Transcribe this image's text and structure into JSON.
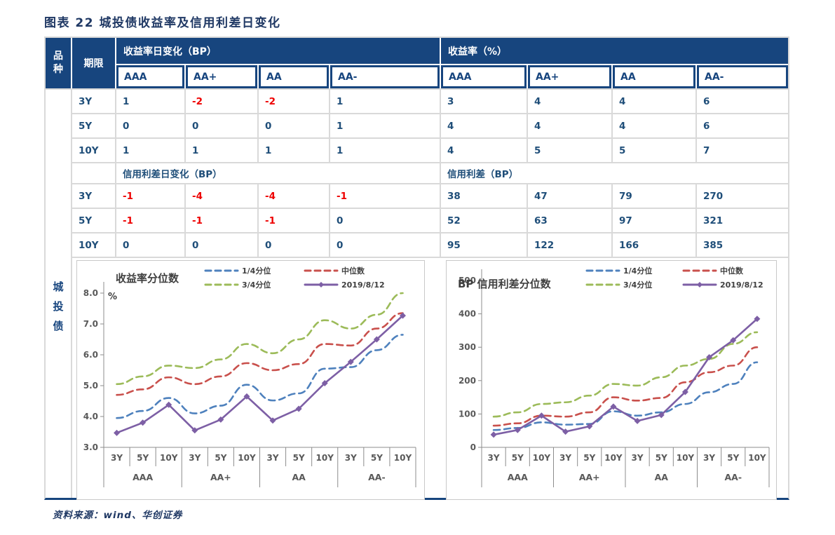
{
  "title": "图表 22  城投债收益率及信用利差日变化",
  "source_note": "资料来源：wind、华创证券",
  "table": {
    "col_variety": "品种",
    "col_term": "期限",
    "variety_label": "城投债",
    "ratings": [
      "AAA",
      "AA+",
      "AA",
      "AA-"
    ],
    "terms": [
      "3Y",
      "5Y",
      "10Y"
    ],
    "yield_change_header": "收益率日变化（BP）",
    "yield_header": "收益率（%）",
    "spread_change_header": "信用利差日变化（BP）",
    "spread_header": "信用利差（BP）",
    "yield_change_rows": [
      [
        1,
        -2,
        -2,
        1
      ],
      [
        0,
        0,
        0,
        1
      ],
      [
        1,
        1,
        1,
        1
      ]
    ],
    "yield_rows": [
      [
        3,
        4,
        4,
        6
      ],
      [
        4,
        4,
        4,
        6
      ],
      [
        4,
        5,
        5,
        7
      ]
    ],
    "spread_change_rows": [
      [
        -1,
        -4,
        -4,
        -1
      ],
      [
        -1,
        -1,
        -1,
        0
      ],
      [
        0,
        0,
        0,
        0
      ]
    ],
    "spread_rows": [
      [
        38,
        47,
        79,
        270
      ],
      [
        52,
        63,
        97,
        321
      ],
      [
        95,
        122,
        166,
        385
      ]
    ]
  },
  "chart_data": [
    {
      "type": "line",
      "title": "收益率分位数",
      "unit": "%",
      "groups": [
        "AAA",
        "AA+",
        "AA",
        "AA-"
      ],
      "terms": [
        "3Y",
        "5Y",
        "10Y"
      ],
      "ylim": [
        3.0,
        8.0
      ],
      "yticks": [
        "3.0",
        "4.0",
        "5.0",
        "6.0",
        "7.0",
        "8.0"
      ],
      "grid": false,
      "legend_position": "top-right",
      "series": [
        {
          "name": "1/4分位",
          "color": "#4E81BD",
          "style": "dashed",
          "values": [
            3.95,
            4.18,
            4.6,
            4.1,
            4.35,
            5.03,
            4.52,
            4.75,
            5.55,
            5.6,
            6.15,
            6.65
          ]
        },
        {
          "name": "中位数",
          "color": "#C9504C",
          "style": "dashed",
          "values": [
            4.7,
            4.88,
            5.27,
            5.05,
            5.3,
            5.73,
            5.5,
            5.7,
            6.35,
            6.3,
            6.85,
            7.35
          ]
        },
        {
          "name": "3/4分位",
          "color": "#9CBB59",
          "style": "dashed",
          "values": [
            5.05,
            5.3,
            5.65,
            5.57,
            5.85,
            6.35,
            6.05,
            6.5,
            7.12,
            6.85,
            7.3,
            8.0
          ]
        },
        {
          "name": "2019/8/12",
          "color": "#7D5FA5",
          "style": "solid-diamond",
          "values": [
            3.47,
            3.8,
            4.38,
            3.55,
            3.9,
            4.65,
            3.87,
            4.25,
            5.08,
            5.77,
            6.5,
            7.27
          ]
        }
      ]
    },
    {
      "type": "line",
      "title": "BP 信用利差分位数",
      "unit": "",
      "groups": [
        "AAA",
        "AA+",
        "AA",
        "AA-"
      ],
      "terms": [
        "3Y",
        "5Y",
        "10Y"
      ],
      "ylim": [
        0,
        500
      ],
      "yticks": [
        "0",
        "100",
        "200",
        "300",
        "400",
        "500"
      ],
      "grid": false,
      "legend_position": "top-right",
      "series": [
        {
          "name": "1/4分位",
          "color": "#4E81BD",
          "style": "dashed",
          "values": [
            52,
            58,
            75,
            68,
            70,
            108,
            95,
            105,
            130,
            165,
            190,
            255
          ]
        },
        {
          "name": "中位数",
          "color": "#C9504C",
          "style": "dashed",
          "values": [
            65,
            72,
            95,
            92,
            105,
            150,
            140,
            148,
            195,
            225,
            245,
            300
          ]
        },
        {
          "name": "3/4分位",
          "color": "#9CBB59",
          "style": "dashed",
          "values": [
            92,
            105,
            130,
            135,
            155,
            190,
            185,
            210,
            245,
            265,
            310,
            345
          ]
        },
        {
          "name": "2019/8/12",
          "color": "#7D5FA5",
          "style": "solid-diamond",
          "values": [
            38,
            52,
            95,
            47,
            63,
            122,
            79,
            97,
            166,
            270,
            321,
            385
          ]
        }
      ]
    }
  ]
}
